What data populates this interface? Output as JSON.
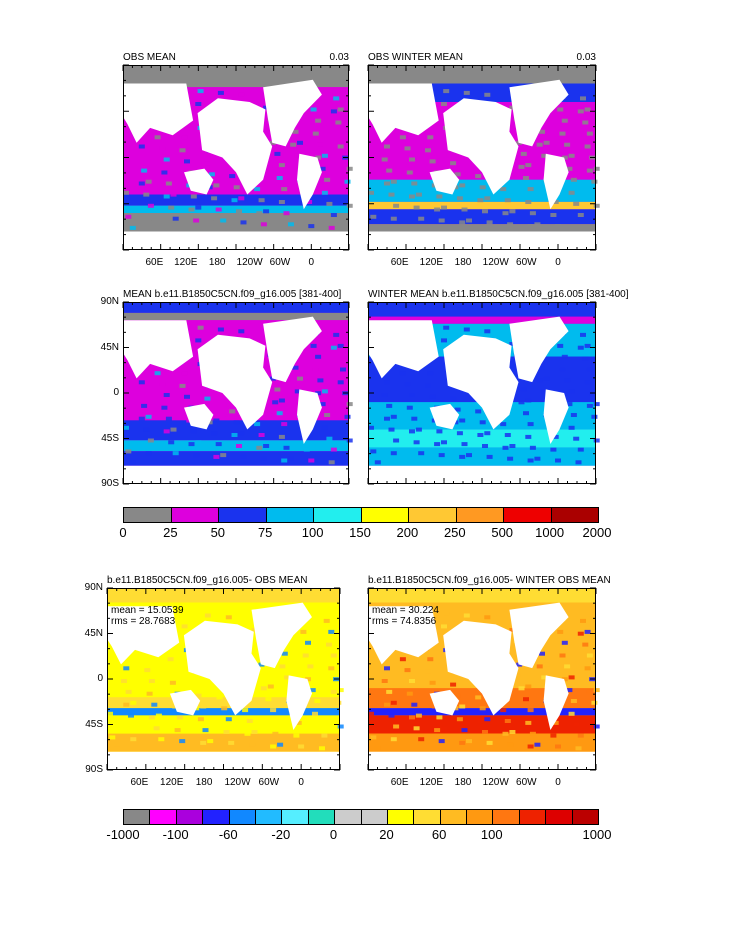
{
  "panels": [
    {
      "title": "OBS MEAN",
      "value": "0.03",
      "mode": "obs"
    },
    {
      "title": "OBS WINTER MEAN",
      "value": "0.03",
      "mode": "obsw"
    },
    {
      "title": "MEAN b.e11.B1850C5CN.f09_g16.005 [381-400]",
      "value": "",
      "mode": "model"
    },
    {
      "title": "WINTER MEAN b.e11.B1850C5CN.f09_g16.005 [381-400]",
      "value": "",
      "mode": "modelw"
    },
    {
      "title": "b.e11.B1850C5CN.f09_g16.005- OBS MEAN",
      "value": "",
      "mode": "diff",
      "mean": "mean = 15.0539",
      "rms": "rms = 28.7683"
    },
    {
      "title": "b.e11.B1850C5CN.f09_g16.005- WINTER OBS MEAN",
      "value": "",
      "mode": "diffw",
      "mean": "mean = 30.224",
      "rms": "rms = 74.8356"
    }
  ],
  "lat_labels": [
    "90N",
    "45N",
    "0",
    "45S",
    "90S"
  ],
  "lon_labels": [
    "60E",
    "120E",
    "180",
    "120W",
    "60W",
    "0"
  ],
  "colorbar1": {
    "labels": [
      "0",
      "25",
      "50",
      "75",
      "100",
      "150",
      "200",
      "250",
      "500",
      "1000",
      "2000"
    ],
    "colors": [
      "#888888",
      "#dd00dd",
      "#1a33ee",
      "#00bbee",
      "#22eeee",
      "#ffff00",
      "#ffc833",
      "#ff9922",
      "#ee0000",
      "#aa0000"
    ]
  },
  "colorbar2": {
    "labels": [
      "-1000",
      "-100",
      "-60",
      "-20",
      "0",
      "20",
      "60",
      "100",
      "1000"
    ],
    "colors": [
      "#888888",
      "#ff00ff",
      "#aa00dd",
      "#2222ff",
      "#1188ff",
      "#22bbff",
      "#55eeff",
      "#22ddbb",
      "#cccccc",
      "#cccccc",
      "#ffff00",
      "#ffdd33",
      "#ffbb22",
      "#ff9911",
      "#ff7711",
      "#ee2200",
      "#dd0000",
      "#bb0000"
    ]
  }
}
